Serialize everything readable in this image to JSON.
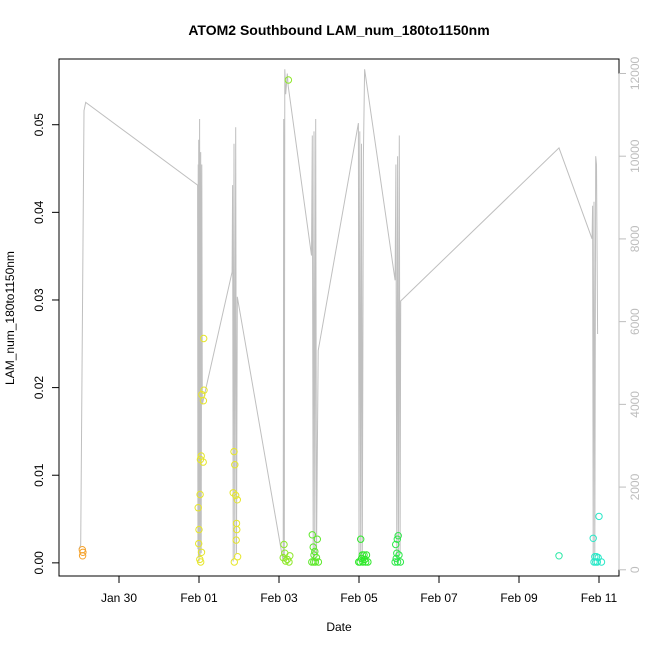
{
  "chart_data": {
    "type": "scatter",
    "title": "ATOM2 Southbound LAM_num_180to1150nm",
    "xlabel": "Date",
    "ylabel": "LAM_num_180to1150nm",
    "y2label": "",
    "xlim": [
      "2024-01-28T12:00",
      "2024-02-11T12:00"
    ],
    "ylim": [
      -0.0015,
      0.0575
    ],
    "y2lim": [
      -150,
      12350
    ],
    "x_ticks": [
      {
        "value": "2024-01-30T00:00",
        "label": "Jan 30"
      },
      {
        "value": "2024-02-01T00:00",
        "label": "Feb 01"
      },
      {
        "value": "2024-02-03T00:00",
        "label": "Feb 03"
      },
      {
        "value": "2024-02-05T00:00",
        "label": "Feb 05"
      },
      {
        "value": "2024-02-07T00:00",
        "label": "Feb 07"
      },
      {
        "value": "2024-02-09T00:00",
        "label": "Feb 09"
      },
      {
        "value": "2024-02-11T00:00",
        "label": "Feb 11"
      }
    ],
    "y_ticks": [
      {
        "value": 0.0,
        "label": "0.00"
      },
      {
        "value": 0.01,
        "label": "0.01"
      },
      {
        "value": 0.02,
        "label": "0.02"
      },
      {
        "value": 0.03,
        "label": "0.03"
      },
      {
        "value": 0.04,
        "label": "0.04"
      },
      {
        "value": 0.05,
        "label": "0.05"
      }
    ],
    "y2_ticks": [
      {
        "value": 0,
        "label": "0"
      },
      {
        "value": 2000,
        "label": "2000"
      },
      {
        "value": 4000,
        "label": "4000"
      },
      {
        "value": 6000,
        "label": "6000"
      },
      {
        "value": 8000,
        "label": "8000"
      },
      {
        "value": 10000,
        "label": "10000"
      },
      {
        "value": 12000,
        "label": "12000"
      }
    ],
    "line_color": "#bfbfbf",
    "grid": false,
    "legend": "none",
    "points": [
      {
        "x": "2024-01-29T02:00",
        "y": 0.0015,
        "color": "#f4a12a"
      },
      {
        "x": "2024-01-29T02:20",
        "y": 0.0012,
        "color": "#f4a12a"
      },
      {
        "x": "2024-01-29T02:10",
        "y": 0.0008,
        "color": "#f4a12a"
      },
      {
        "x": "2024-01-31T23:30",
        "y": 0.0063,
        "color": "#e6e62a"
      },
      {
        "x": "2024-02-01T00:00",
        "y": 0.0038,
        "color": "#e6e62a"
      },
      {
        "x": "2024-01-31T23:50",
        "y": 0.0022,
        "color": "#e6e62a"
      },
      {
        "x": "2024-02-01T00:30",
        "y": 0.0004,
        "color": "#e6e62a"
      },
      {
        "x": "2024-02-01T01:00",
        "y": 0.0001,
        "color": "#e6e62a"
      },
      {
        "x": "2024-02-01T01:30",
        "y": 0.0012,
        "color": "#e6e62a"
      },
      {
        "x": "2024-02-01T00:40",
        "y": 0.0078,
        "color": "#e6e62a"
      },
      {
        "x": "2024-02-01T00:50",
        "y": 0.0118,
        "color": "#e6e62a"
      },
      {
        "x": "2024-02-01T01:20",
        "y": 0.0122,
        "color": "#e6e62a"
      },
      {
        "x": "2024-02-01T02:30",
        "y": 0.0115,
        "color": "#e6e62a"
      },
      {
        "x": "2024-02-01T01:40",
        "y": 0.0192,
        "color": "#e6e62a"
      },
      {
        "x": "2024-02-01T03:00",
        "y": 0.0197,
        "color": "#e6e62a"
      },
      {
        "x": "2024-02-01T02:40",
        "y": 0.0185,
        "color": "#e6e62a"
      },
      {
        "x": "2024-02-01T02:50",
        "y": 0.0256,
        "color": "#e6e62a"
      },
      {
        "x": "2024-02-01T21:00",
        "y": 0.0127,
        "color": "#e6e62a"
      },
      {
        "x": "2024-02-01T21:30",
        "y": 0.0112,
        "color": "#e6e62a"
      },
      {
        "x": "2024-02-01T20:30",
        "y": 0.008,
        "color": "#e6e62a"
      },
      {
        "x": "2024-02-01T22:00",
        "y": 0.0077,
        "color": "#e6e62a"
      },
      {
        "x": "2024-02-01T23:00",
        "y": 0.0072,
        "color": "#e6e62a"
      },
      {
        "x": "2024-02-01T22:30",
        "y": 0.0045,
        "color": "#e6e62a"
      },
      {
        "x": "2024-02-01T22:40",
        "y": 0.0038,
        "color": "#e6e62a"
      },
      {
        "x": "2024-02-01T22:20",
        "y": 0.0026,
        "color": "#e6e62a"
      },
      {
        "x": "2024-02-01T23:10",
        "y": 0.0007,
        "color": "#e6e62a"
      },
      {
        "x": "2024-02-01T21:10",
        "y": 0.0001,
        "color": "#e6e62a"
      },
      {
        "x": "2024-02-03T03:00",
        "y": 0.0021,
        "color": "#8fe82a"
      },
      {
        "x": "2024-02-03T03:30",
        "y": 0.0011,
        "color": "#8fe82a"
      },
      {
        "x": "2024-02-03T02:30",
        "y": 0.0006,
        "color": "#8fe82a"
      },
      {
        "x": "2024-02-03T04:00",
        "y": 0.0002,
        "color": "#8fe82a"
      },
      {
        "x": "2024-02-03T05:00",
        "y": 0.0004,
        "color": "#8fe82a"
      },
      {
        "x": "2024-02-03T06:00",
        "y": 0.0001,
        "color": "#8fe82a"
      },
      {
        "x": "2024-02-03T06:30",
        "y": 0.0008,
        "color": "#8fe82a"
      },
      {
        "x": "2024-02-03T05:40",
        "y": 0.0551,
        "color": "#8fe82a"
      },
      {
        "x": "2024-02-03T20:00",
        "y": 0.0032,
        "color": "#5de82a"
      },
      {
        "x": "2024-02-03T23:00",
        "y": 0.0027,
        "color": "#5de82a"
      },
      {
        "x": "2024-02-03T20:30",
        "y": 0.0018,
        "color": "#5de82a"
      },
      {
        "x": "2024-02-03T21:30",
        "y": 0.0013,
        "color": "#5de82a"
      },
      {
        "x": "2024-02-03T21:00",
        "y": 0.0009,
        "color": "#5de82a"
      },
      {
        "x": "2024-02-03T22:30",
        "y": 0.0006,
        "color": "#5de82a"
      },
      {
        "x": "2024-02-03T19:40",
        "y": 0.0001,
        "color": "#5de82a"
      },
      {
        "x": "2024-02-03T20:50",
        "y": 0.0001,
        "color": "#5de82a"
      },
      {
        "x": "2024-02-03T21:50",
        "y": 0.0001,
        "color": "#5de82a"
      },
      {
        "x": "2024-02-03T23:40",
        "y": 0.0001,
        "color": "#5de82a"
      },
      {
        "x": "2024-02-05T01:00",
        "y": 0.0027,
        "color": "#2ee82a"
      },
      {
        "x": "2024-02-05T02:00",
        "y": 0.0009,
        "color": "#2ee82a"
      },
      {
        "x": "2024-02-05T03:00",
        "y": 0.0009,
        "color": "#2ee82a"
      },
      {
        "x": "2024-02-05T04:30",
        "y": 0.0009,
        "color": "#2ee82a"
      },
      {
        "x": "2024-02-05T01:30",
        "y": 0.0005,
        "color": "#2ee82a"
      },
      {
        "x": "2024-02-05T03:30",
        "y": 0.0004,
        "color": "#2ee82a"
      },
      {
        "x": "2024-02-04T23:50",
        "y": 0.0001,
        "color": "#2ee82a"
      },
      {
        "x": "2024-02-05T00:40",
        "y": 0.0001,
        "color": "#2ee82a"
      },
      {
        "x": "2024-02-05T02:20",
        "y": 0.0001,
        "color": "#2ee82a"
      },
      {
        "x": "2024-02-05T04:00",
        "y": 0.0001,
        "color": "#2ee82a"
      },
      {
        "x": "2024-02-05T05:20",
        "y": 0.0001,
        "color": "#2ee82a"
      },
      {
        "x": "2024-02-05T22:00",
        "y": 0.0021,
        "color": "#2ee84a"
      },
      {
        "x": "2024-02-05T23:30",
        "y": 0.0031,
        "color": "#2ee84a"
      },
      {
        "x": "2024-02-05T23:00",
        "y": 0.0027,
        "color": "#2ee84a"
      },
      {
        "x": "2024-02-05T22:40",
        "y": 0.0011,
        "color": "#2ee84a"
      },
      {
        "x": "2024-02-06T00:00",
        "y": 0.0009,
        "color": "#2ee84a"
      },
      {
        "x": "2024-02-05T22:20",
        "y": 0.0005,
        "color": "#2ee84a"
      },
      {
        "x": "2024-02-05T21:40",
        "y": 0.0001,
        "color": "#2ee84a"
      },
      {
        "x": "2024-02-05T23:10",
        "y": 0.0001,
        "color": "#2ee84a"
      },
      {
        "x": "2024-02-06T00:50",
        "y": 0.0001,
        "color": "#2ee84a"
      },
      {
        "x": "2024-02-10T00:00",
        "y": 0.0008,
        "color": "#2ae8a6"
      },
      {
        "x": "2024-02-10T20:30",
        "y": 0.0028,
        "color": "#2ae8c8"
      },
      {
        "x": "2024-02-11T00:00",
        "y": 0.0053,
        "color": "#2ae8c8"
      },
      {
        "x": "2024-02-10T21:30",
        "y": 0.0007,
        "color": "#2ae8c8"
      },
      {
        "x": "2024-02-10T22:30",
        "y": 0.0007,
        "color": "#2ae8c8"
      },
      {
        "x": "2024-02-10T23:30",
        "y": 0.0006,
        "color": "#2ae8c8"
      },
      {
        "x": "2024-02-10T21:00",
        "y": 0.0001,
        "color": "#2ae8c8"
      },
      {
        "x": "2024-02-10T22:00",
        "y": 0.0001,
        "color": "#2ae8c8"
      },
      {
        "x": "2024-02-10T23:00",
        "y": 0.0001,
        "color": "#2ae8c8"
      },
      {
        "x": "2024-02-11T01:30",
        "y": 0.0001,
        "color": "#2ae8c8"
      }
    ],
    "line_series": [
      [
        "2024-01-29T00:00",
        500
      ],
      [
        "2024-01-29T01:00",
        600
      ],
      [
        "2024-01-29T03:00",
        11100
      ],
      [
        "2024-01-29T04:00",
        11300
      ],
      [
        "2024-01-31T23:10",
        9300
      ],
      [
        "2024-01-31T23:20",
        500
      ],
      [
        "2024-01-31T23:30",
        9800
      ],
      [
        "2024-01-31T23:40",
        300
      ],
      [
        "2024-01-31T23:50",
        10400
      ],
      [
        "2024-02-01T00:00",
        200
      ],
      [
        "2024-02-01T00:20",
        10900
      ],
      [
        "2024-02-01T00:40",
        300
      ],
      [
        "2024-02-01T01:00",
        10100
      ],
      [
        "2024-02-01T01:20",
        400
      ],
      [
        "2024-02-01T01:40",
        9800
      ],
      [
        "2024-02-01T02:00",
        4000
      ],
      [
        "2024-02-01T19:50",
        7200
      ],
      [
        "2024-02-01T20:10",
        9300
      ],
      [
        "2024-02-01T20:30",
        200
      ],
      [
        "2024-02-01T21:00",
        10300
      ],
      [
        "2024-02-01T21:30",
        300
      ],
      [
        "2024-02-01T22:00",
        10700
      ],
      [
        "2024-02-01T22:30",
        400
      ],
      [
        "2024-02-01T23:00",
        6600
      ],
      [
        "2024-02-03T02:30",
        200
      ],
      [
        "2024-02-03T02:50",
        10900
      ],
      [
        "2024-02-03T03:10",
        300
      ],
      [
        "2024-02-03T03:30",
        12100
      ],
      [
        "2024-02-03T04:00",
        11500
      ],
      [
        "2024-02-03T05:00",
        12000
      ],
      [
        "2024-02-03T05:30",
        11700
      ],
      [
        "2024-02-03T19:30",
        7600
      ],
      [
        "2024-02-03T20:00",
        10500
      ],
      [
        "2024-02-03T20:30",
        200
      ],
      [
        "2024-02-03T21:00",
        10600
      ],
      [
        "2024-02-03T21:30",
        300
      ],
      [
        "2024-02-03T22:00",
        10900
      ],
      [
        "2024-02-03T22:30",
        400
      ],
      [
        "2024-02-03T23:30",
        5300
      ],
      [
        "2024-02-04T23:40",
        10800
      ],
      [
        "2024-02-05T00:00",
        200
      ],
      [
        "2024-02-05T00:30",
        10600
      ],
      [
        "2024-02-05T01:00",
        300
      ],
      [
        "2024-02-05T01:30",
        10300
      ],
      [
        "2024-02-05T02:00",
        300
      ],
      [
        "2024-02-05T02:40",
        10000
      ],
      [
        "2024-02-05T03:20",
        12100
      ],
      [
        "2024-02-05T21:40",
        7000
      ],
      [
        "2024-02-05T22:10",
        9800
      ],
      [
        "2024-02-05T22:40",
        200
      ],
      [
        "2024-02-05T23:10",
        10000
      ],
      [
        "2024-02-05T23:40",
        300
      ],
      [
        "2024-02-06T00:10",
        10500
      ],
      [
        "2024-02-06T00:40",
        400
      ],
      [
        "2024-02-06T01:00",
        6500
      ],
      [
        "2024-02-10T00:00",
        10200
      ],
      [
        "2024-02-10T19:50",
        8000
      ],
      [
        "2024-02-10T20:10",
        8800
      ],
      [
        "2024-02-10T20:30",
        200
      ],
      [
        "2024-02-10T21:00",
        8900
      ],
      [
        "2024-02-10T21:30",
        300
      ],
      [
        "2024-02-10T22:00",
        10000
      ],
      [
        "2024-02-10T22:30",
        9800
      ],
      [
        "2024-02-10T23:10",
        5700
      ]
    ]
  }
}
